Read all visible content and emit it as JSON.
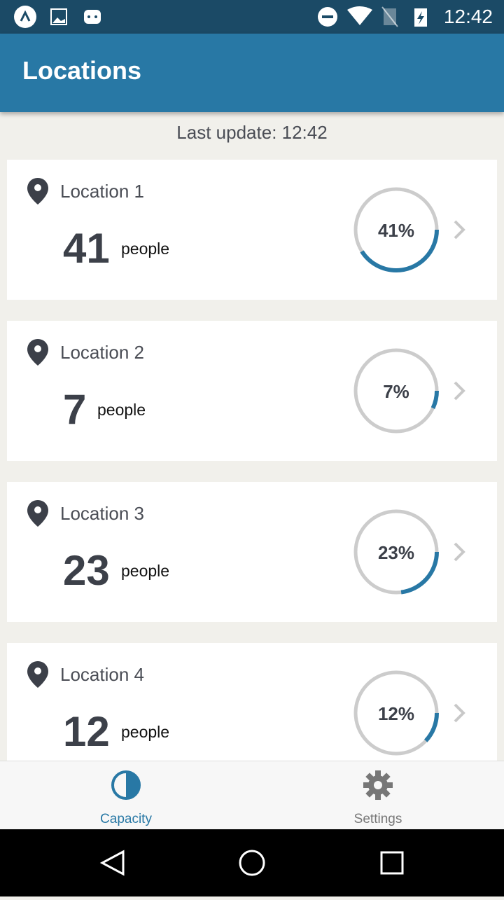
{
  "status_bar": {
    "time": "12:42"
  },
  "app_bar": {
    "title": "Locations"
  },
  "last_update": "Last update: 12:42",
  "colors": {
    "accent": "#2878a5",
    "track": "#cccccc"
  },
  "locations": [
    {
      "name": "Location 1",
      "count": "41",
      "unit": "people",
      "percent_label": "41%",
      "percent": 41
    },
    {
      "name": "Location 2",
      "count": "7",
      "unit": "people",
      "percent_label": "7%",
      "percent": 7
    },
    {
      "name": "Location 3",
      "count": "23",
      "unit": "people",
      "percent_label": "23%",
      "percent": 23
    },
    {
      "name": "Location 4",
      "count": "12",
      "unit": "people",
      "percent_label": "12%",
      "percent": 12
    }
  ],
  "bottom_nav": {
    "tabs": [
      {
        "label": "Capacity",
        "icon": "half-circle-icon",
        "active": true
      },
      {
        "label": "Settings",
        "icon": "gear-icon",
        "active": false
      }
    ]
  }
}
